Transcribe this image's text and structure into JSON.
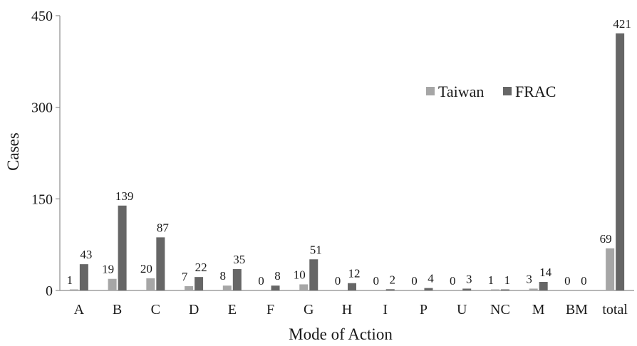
{
  "chart_data": {
    "type": "bar",
    "title": "",
    "xlabel": "Mode of Action",
    "ylabel": "Cases",
    "ylim": [
      0,
      450
    ],
    "yticks": [
      0,
      150,
      300,
      450
    ],
    "grid": false,
    "legend_position": "top-right",
    "categories": [
      "A",
      "B",
      "C",
      "D",
      "E",
      "F",
      "G",
      "H",
      "I",
      "P",
      "U",
      "NC",
      "M",
      "BM",
      "total"
    ],
    "series": [
      {
        "name": "Taiwan",
        "color": "#a6a6a6",
        "values": [
          1,
          19,
          20,
          7,
          8,
          0,
          10,
          0,
          0,
          0,
          0,
          1,
          3,
          0,
          69
        ]
      },
      {
        "name": "FRAC",
        "color": "#666666",
        "values": [
          43,
          139,
          87,
          22,
          35,
          8,
          51,
          12,
          2,
          4,
          3,
          1,
          14,
          0,
          421
        ]
      }
    ]
  }
}
